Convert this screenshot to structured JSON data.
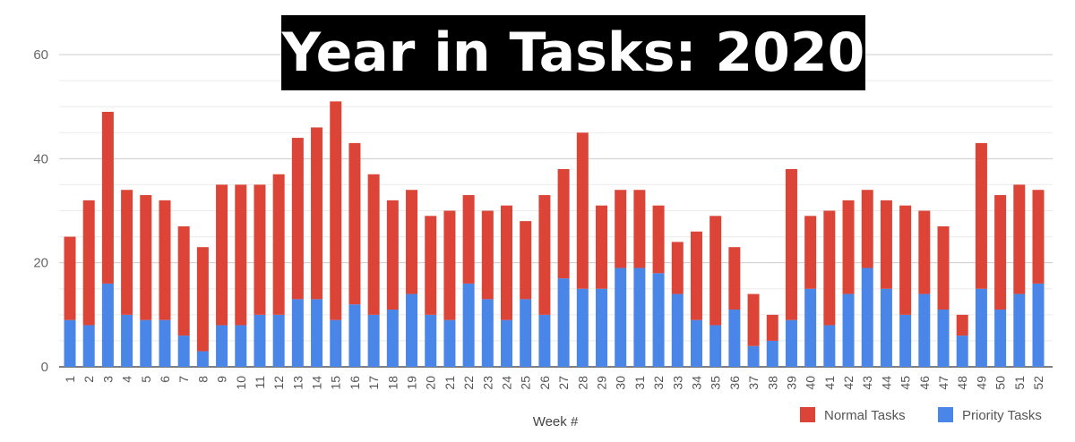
{
  "chart_data": {
    "type": "bar",
    "stacked": true,
    "title": "Year in Tasks: 2020",
    "xlabel": "Week #",
    "ylabel": "",
    "ylim": [
      0,
      60
    ],
    "yticks": [
      0,
      20,
      40,
      60
    ],
    "grid": true,
    "legend_position": "bottom-right",
    "categories": [
      "1",
      "2",
      "3",
      "4",
      "5",
      "6",
      "7",
      "8",
      "9",
      "10",
      "11",
      "12",
      "13",
      "14",
      "15",
      "16",
      "17",
      "18",
      "19",
      "20",
      "21",
      "22",
      "23",
      "24",
      "25",
      "26",
      "27",
      "28",
      "29",
      "30",
      "31",
      "32",
      "33",
      "34",
      "35",
      "36",
      "37",
      "38",
      "39",
      "40",
      "41",
      "42",
      "43",
      "44",
      "45",
      "46",
      "47",
      "48",
      "49",
      "50",
      "51",
      "52"
    ],
    "series": [
      {
        "name": "Priority Tasks",
        "color": "#4a86e8",
        "values": [
          9,
          8,
          16,
          10,
          9,
          9,
          6,
          3,
          8,
          8,
          10,
          10,
          13,
          13,
          9,
          12,
          10,
          11,
          14,
          10,
          9,
          16,
          13,
          9,
          13,
          10,
          17,
          15,
          15,
          19,
          19,
          18,
          14,
          9,
          8,
          11,
          4,
          5,
          9,
          15,
          8,
          14,
          19,
          15,
          10,
          14,
          11,
          6,
          15,
          11,
          14,
          16
        ]
      },
      {
        "name": "Normal Tasks",
        "color": "#db4437",
        "values": [
          16,
          24,
          33,
          24,
          24,
          23,
          21,
          20,
          27,
          27,
          25,
          27,
          31,
          33,
          42,
          31,
          27,
          21,
          20,
          19,
          21,
          17,
          17,
          22,
          15,
          23,
          21,
          30,
          16,
          15,
          15,
          13,
          10,
          17,
          21,
          12,
          10,
          5,
          29,
          14,
          22,
          18,
          15,
          17,
          21,
          16,
          16,
          4,
          28,
          22,
          21,
          18
        ]
      }
    ]
  }
}
